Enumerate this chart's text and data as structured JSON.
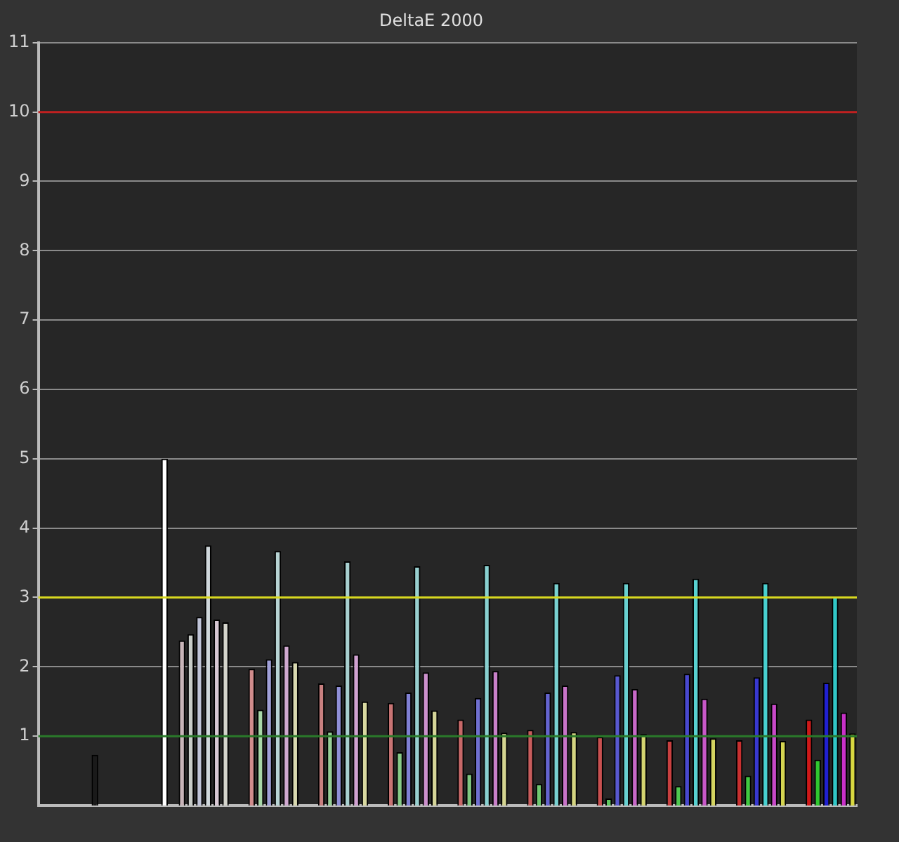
{
  "chart_data": {
    "type": "bar",
    "title": "DeltaE 2000",
    "categories": [
      null,
      null,
      null,
      null,
      null,
      null,
      null,
      null,
      null,
      null,
      null,
      null,
      null,
      null,
      null,
      null,
      null,
      null,
      null,
      null,
      null,
      null,
      null,
      null,
      null,
      null,
      null,
      null,
      null,
      null,
      null,
      null,
      null,
      null,
      null,
      null,
      null,
      null,
      null,
      null,
      null,
      null,
      null,
      null,
      null,
      null,
      null,
      null,
      null,
      null,
      null,
      null,
      null,
      null,
      null,
      null,
      null,
      null,
      null,
      null,
      null,
      null,
      null,
      null,
      null,
      null,
      null,
      null,
      null,
      null,
      null,
      null,
      null,
      null,
      null,
      null,
      null,
      null,
      null,
      null,
      null,
      null,
      null,
      null,
      null,
      null,
      null,
      null,
      null,
      null,
      null,
      null,
      null,
      null
    ],
    "values": [
      null,
      null,
      null,
      null,
      null,
      null,
      0.73,
      null,
      null,
      null,
      null,
      null,
      null,
      null,
      5.0,
      null,
      2.38,
      2.47,
      2.72,
      3.75,
      2.68,
      2.64,
      null,
      null,
      1.97,
      1.38,
      2.11,
      3.67,
      2.31,
      2.07,
      null,
      null,
      1.76,
      1.07,
      1.73,
      3.52,
      2.18,
      1.5,
      null,
      null,
      1.48,
      0.77,
      1.63,
      3.45,
      1.92,
      1.37,
      null,
      null,
      1.24,
      0.46,
      1.55,
      3.47,
      1.94,
      1.05,
      null,
      null,
      1.09,
      0.31,
      1.63,
      3.21,
      1.73,
      1.06,
      null,
      null,
      0.99,
      0.1,
      1.88,
      3.21,
      1.68,
      1.03,
      null,
      null,
      0.94,
      0.28,
      1.9,
      3.27,
      1.54,
      0.97,
      null,
      null,
      0.94,
      0.43,
      1.85,
      3.21,
      1.47,
      0.93,
      null,
      null,
      1.24,
      0.66,
      1.77,
      3.02,
      1.34,
      1.04
    ],
    "colors": [
      null,
      null,
      null,
      null,
      null,
      null,
      "#1a1a1a",
      null,
      null,
      null,
      null,
      null,
      null,
      null,
      "#ffffff",
      null,
      "#c8b4b8",
      "#c8ccc8",
      "#c0c4d8",
      "#d0d8dc",
      "#d8c8d4",
      "#d4d4cc",
      null,
      null,
      "#d08c8c",
      "#a8d8a8",
      "#a0a0d8",
      "#b8d4d4",
      "#d0a8d0",
      "#d8d8b0",
      null,
      null,
      "#c88080",
      "#98d098",
      "#9090d8",
      "#a8d0d0",
      "#d0a0d0",
      "#d8d8a0",
      null,
      null,
      "#c87474",
      "#88cc88",
      "#8080d4",
      "#98d0d0",
      "#cc90cc",
      "#d4d498",
      null,
      null,
      "#c86868",
      "#80c880",
      "#7070d0",
      "#88d0d0",
      "#c880c8",
      "#d4d490",
      null,
      null,
      "#c85c5c",
      "#70c870",
      "#6464d0",
      "#78d0d0",
      "#c874c8",
      "#d4d480",
      null,
      null,
      "#c85050",
      "#60c860",
      "#5858d0",
      "#68d0d0",
      "#c868c8",
      "#d4d470",
      null,
      null,
      "#c84040",
      "#50c850",
      "#4848d0",
      "#58d0d0",
      "#c858c8",
      "#d4d460",
      null,
      null,
      "#c83030",
      "#40c840",
      "#3838d0",
      "#48d0d0",
      "#c848c8",
      "#d4d450",
      null,
      null,
      "#d01818",
      "#30c830",
      "#2020d0",
      "#30c8c8",
      "#c830c8",
      "#d8d840"
    ],
    "ylim": [
      0,
      11
    ],
    "yticks": [
      1,
      2,
      3,
      4,
      5,
      6,
      7,
      8,
      9,
      10,
      11
    ],
    "grid": "y",
    "tick_labels": "y",
    "ref_lines": [
      {
        "axis": "y",
        "value": 10,
        "color": "#c02020"
      },
      {
        "axis": "y",
        "value": 3,
        "color": "#d8d820"
      },
      {
        "axis": "y",
        "value": 1,
        "color": "#2a7a2a"
      }
    ]
  }
}
